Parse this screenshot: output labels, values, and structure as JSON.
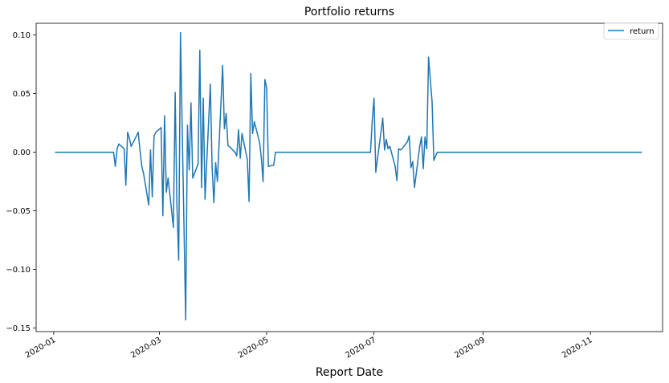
{
  "chart_data": {
    "type": "line",
    "title": "Portfolio returns",
    "xlabel": "Report Date",
    "ylabel": "",
    "xlim": [
      "2019-12-22",
      "2020-12-12"
    ],
    "ylim": [
      -0.153,
      0.11
    ],
    "x_ticks": [
      "2020-01",
      "2020-03",
      "2020-05",
      "2020-07",
      "2020-09",
      "2020-11"
    ],
    "x_tick_dates": [
      "2020-01-01",
      "2020-03-01",
      "2020-05-01",
      "2020-07-01",
      "2020-09-01",
      "2020-11-01"
    ],
    "y_ticks": [
      0.1,
      0.05,
      0.0,
      -0.05,
      -0.1,
      -0.15
    ],
    "y_tick_labels": [
      "0.10",
      "0.05",
      "0.00",
      "−0.05",
      "−0.10",
      "−0.15"
    ],
    "legend": {
      "position": "top-right",
      "entries": [
        "return"
      ]
    },
    "grid": false,
    "series": [
      {
        "name": "return",
        "color": "#1f77b4",
        "points": [
          [
            "2020-01-02",
            0.0
          ],
          [
            "2020-02-04",
            0.0
          ],
          [
            "2020-02-05",
            -0.012
          ],
          [
            "2020-02-06",
            0.003
          ],
          [
            "2020-02-07",
            0.007
          ],
          [
            "2020-02-10",
            0.003
          ],
          [
            "2020-02-11",
            -0.028
          ],
          [
            "2020-02-12",
            0.017
          ],
          [
            "2020-02-13",
            0.012
          ],
          [
            "2020-02-14",
            0.005
          ],
          [
            "2020-02-18",
            0.017
          ],
          [
            "2020-02-19",
            0.002
          ],
          [
            "2020-02-20",
            -0.012
          ],
          [
            "2020-02-21",
            -0.018
          ],
          [
            "2020-02-24",
            -0.045
          ],
          [
            "2020-02-25",
            0.002
          ],
          [
            "2020-02-26",
            -0.038
          ],
          [
            "2020-02-27",
            0.014
          ],
          [
            "2020-02-28",
            0.017
          ],
          [
            "2020-03-02",
            0.021
          ],
          [
            "2020-03-03",
            -0.054
          ],
          [
            "2020-03-04",
            0.031
          ],
          [
            "2020-03-05",
            -0.034
          ],
          [
            "2020-03-06",
            -0.022
          ],
          [
            "2020-03-09",
            -0.064
          ],
          [
            "2020-03-10",
            0.051
          ],
          [
            "2020-03-11",
            -0.046
          ],
          [
            "2020-03-12",
            -0.092
          ],
          [
            "2020-03-13",
            0.102
          ],
          [
            "2020-03-16",
            -0.143
          ],
          [
            "2020-03-17",
            0.023
          ],
          [
            "2020-03-18",
            -0.015
          ],
          [
            "2020-03-19",
            0.042
          ],
          [
            "2020-03-20",
            -0.022
          ],
          [
            "2020-03-23",
            -0.01
          ],
          [
            "2020-03-24",
            0.087
          ],
          [
            "2020-03-25",
            -0.03
          ],
          [
            "2020-03-26",
            0.046
          ],
          [
            "2020-03-27",
            -0.04
          ],
          [
            "2020-03-30",
            0.058
          ],
          [
            "2020-03-31",
            -0.013
          ],
          [
            "2020-04-01",
            -0.043
          ],
          [
            "2020-04-02",
            -0.009
          ],
          [
            "2020-04-03",
            -0.025
          ],
          [
            "2020-04-06",
            0.074
          ],
          [
            "2020-04-07",
            0.02
          ],
          [
            "2020-04-08",
            0.033
          ],
          [
            "2020-04-09",
            0.006
          ],
          [
            "2020-04-13",
            0.0
          ],
          [
            "2020-04-14",
            -0.003
          ],
          [
            "2020-04-15",
            0.019
          ],
          [
            "2020-04-16",
            -0.005
          ],
          [
            "2020-04-17",
            0.016
          ],
          [
            "2020-04-20",
            -0.006
          ],
          [
            "2020-04-21",
            -0.042
          ],
          [
            "2020-04-22",
            0.067
          ],
          [
            "2020-04-23",
            0.016
          ],
          [
            "2020-04-24",
            0.026
          ],
          [
            "2020-04-27",
            0.008
          ],
          [
            "2020-04-28",
            -0.005
          ],
          [
            "2020-04-29",
            -0.025
          ],
          [
            "2020-04-30",
            0.062
          ],
          [
            "2020-05-01",
            0.055
          ],
          [
            "2020-05-02",
            -0.012
          ],
          [
            "2020-05-05",
            -0.011
          ],
          [
            "2020-05-06",
            0.0
          ],
          [
            "2020-06-29",
            0.0
          ],
          [
            "2020-06-30",
            0.027
          ],
          [
            "2020-07-01",
            0.046
          ],
          [
            "2020-07-02",
            -0.017
          ],
          [
            "2020-07-03",
            -0.005
          ],
          [
            "2020-07-06",
            0.029
          ],
          [
            "2020-07-07",
            0.002
          ],
          [
            "2020-07-08",
            0.011
          ],
          [
            "2020-07-09",
            0.003
          ],
          [
            "2020-07-10",
            0.005
          ],
          [
            "2020-07-13",
            -0.012
          ],
          [
            "2020-07-14",
            -0.024
          ],
          [
            "2020-07-15",
            0.003
          ],
          [
            "2020-07-16",
            0.002
          ],
          [
            "2020-07-17",
            0.003
          ],
          [
            "2020-07-20",
            0.009
          ],
          [
            "2020-07-21",
            0.014
          ],
          [
            "2020-07-22",
            -0.013
          ],
          [
            "2020-07-23",
            -0.008
          ],
          [
            "2020-07-24",
            -0.03
          ],
          [
            "2020-07-27",
            0.005
          ],
          [
            "2020-07-28",
            0.013
          ],
          [
            "2020-07-29",
            -0.014
          ],
          [
            "2020-07-30",
            0.013
          ],
          [
            "2020-07-31",
            0.003
          ],
          [
            "2020-08-01",
            0.081
          ],
          [
            "2020-08-03",
            0.043
          ],
          [
            "2020-08-04",
            -0.007
          ],
          [
            "2020-08-05",
            -0.003
          ],
          [
            "2020-08-06",
            0.0
          ],
          [
            "2020-11-30",
            0.0
          ]
        ]
      }
    ]
  }
}
